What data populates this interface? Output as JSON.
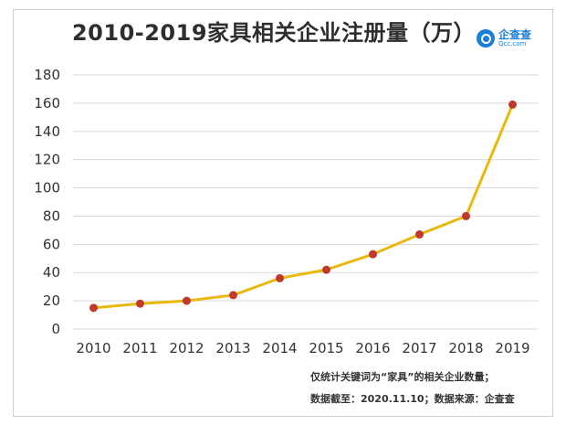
{
  "title": "2010-2019家具相关企业注册量（万）",
  "logo": {
    "name": "企查查",
    "domain": "Qcc.com"
  },
  "notes": {
    "line1": "仅统计关键词为“家具”的相关企业数量；",
    "line2": "数据截至：2020.11.10；数据来源：企查查"
  },
  "colors": {
    "line": "#e8b90e",
    "marker": "#c0392b",
    "grid": "#d9d9d9"
  },
  "chart_data": {
    "type": "line",
    "title": "2010-2019家具相关企业注册量（万）",
    "xlabel": "",
    "ylabel": "",
    "categories": [
      "2010",
      "2011",
      "2012",
      "2013",
      "2014",
      "2015",
      "2016",
      "2017",
      "2018",
      "2019"
    ],
    "series": [
      {
        "values": [
          15,
          18,
          20,
          24,
          36,
          42,
          53,
          67,
          80,
          159
        ]
      }
    ],
    "ylim": [
      0,
      180
    ],
    "yticks": [
      0,
      20,
      40,
      60,
      80,
      100,
      120,
      140,
      160,
      180
    ],
    "grid": true,
    "legend": "none"
  }
}
